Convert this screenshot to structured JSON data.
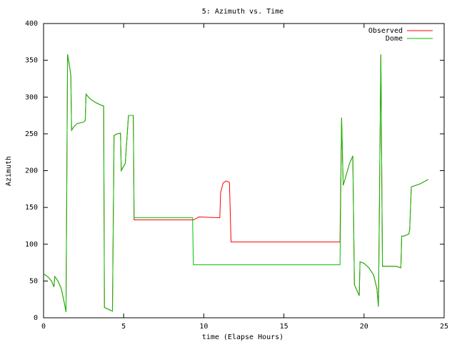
{
  "chart_data": {
    "type": "line",
    "title": "5: Azimuth vs. Time",
    "x_label": "time (Elapse Hours)",
    "y_label": "Azimuth",
    "x": [
      0,
      0.3,
      0.5,
      0.65,
      0.7,
      0.9,
      1.1,
      1.3,
      1.4,
      1.5,
      1.6,
      1.7,
      1.75,
      1.9,
      2.1,
      2.5,
      2.6,
      2.65,
      2.8,
      3.0,
      3.3,
      3.6,
      3.75,
      3.8,
      4.0,
      4.3,
      4.4,
      4.6,
      4.8,
      4.85,
      5.1,
      5.3,
      5.6,
      5.65,
      9.3,
      9.35,
      9.7,
      11.0,
      11.05,
      11.2,
      11.4,
      11.6,
      11.7,
      18.5,
      18.6,
      18.7,
      18.9,
      19.1,
      19.3,
      19.4,
      19.5,
      19.7,
      19.75,
      20.0,
      20.3,
      20.6,
      20.8,
      20.9,
      21.05,
      21.15,
      22.0,
      22.3,
      22.35,
      22.5,
      22.8,
      22.85,
      22.95,
      23.5,
      24.0
    ],
    "series": [
      {
        "name": "Observed",
        "color": "#ff0000",
        "values": [
          60,
          55,
          50,
          42,
          56,
          50,
          40,
          20,
          8,
          358,
          345,
          330,
          255,
          260,
          264,
          266,
          268,
          304,
          300,
          296,
          292,
          289,
          288,
          14,
          12,
          9,
          248,
          250,
          251,
          200,
          210,
          275,
          275,
          133,
          133,
          133,
          137,
          136,
          170,
          183,
          186,
          184,
          103,
          103,
          272,
          180,
          195,
          210,
          220,
          45,
          40,
          30,
          76,
          74,
          68,
          58,
          40,
          15,
          358,
          70,
          70,
          68,
          111,
          111,
          114,
          120,
          178,
          182,
          188
        ]
      },
      {
        "name": "Dome",
        "color": "#00c000",
        "values": [
          60,
          55,
          50,
          42,
          56,
          50,
          40,
          20,
          8,
          358,
          345,
          330,
          255,
          260,
          264,
          266,
          268,
          304,
          300,
          296,
          292,
          289,
          288,
          14,
          12,
          9,
          248,
          250,
          251,
          200,
          210,
          275,
          275,
          136,
          136,
          72,
          72,
          72,
          72,
          72,
          72,
          72,
          72,
          72,
          272,
          180,
          195,
          210,
          220,
          45,
          40,
          30,
          76,
          74,
          68,
          58,
          40,
          15,
          358,
          70,
          70,
          68,
          111,
          111,
          114,
          120,
          178,
          182,
          188
        ]
      }
    ],
    "xlim": [
      0,
      25
    ],
    "xticks": [
      0,
      5,
      10,
      15,
      20,
      25
    ],
    "ylim": [
      0,
      400
    ],
    "yticks": [
      0,
      50,
      100,
      150,
      200,
      250,
      300,
      350,
      400
    ],
    "legend": "top-right"
  }
}
